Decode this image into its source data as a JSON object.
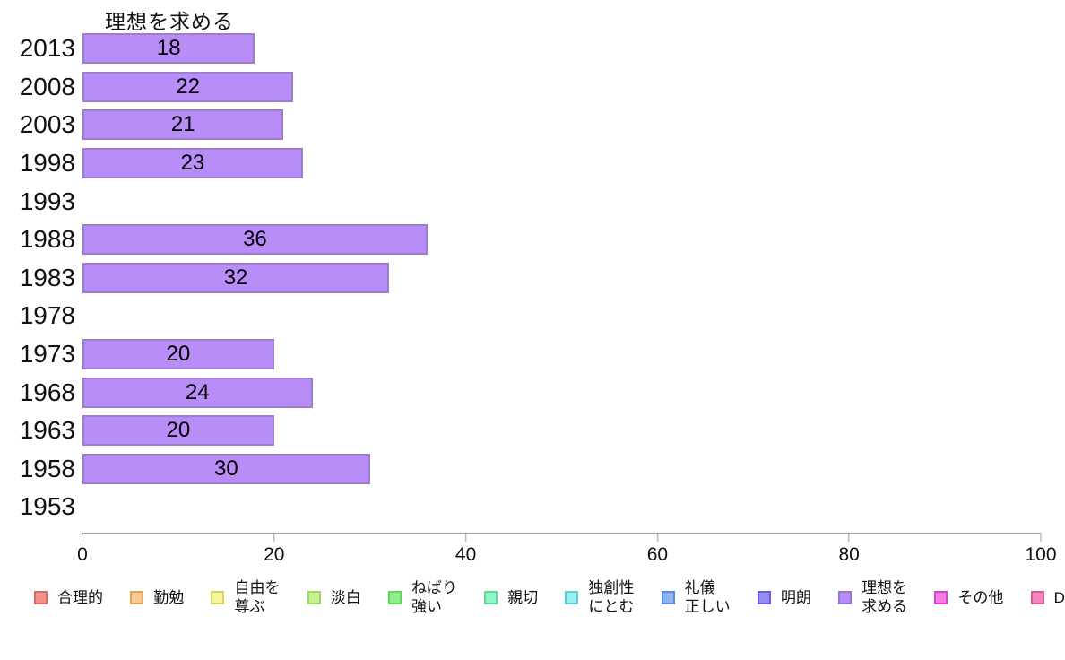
{
  "chart_data": {
    "type": "bar",
    "orientation": "horizontal",
    "title": "理想を求める",
    "categories": [
      "2013",
      "2008",
      "2003",
      "1998",
      "1993",
      "1988",
      "1983",
      "1978",
      "1973",
      "1968",
      "1963",
      "1958",
      "1953"
    ],
    "values": [
      18,
      22,
      21,
      23,
      null,
      36,
      32,
      null,
      20,
      24,
      20,
      30,
      null
    ],
    "xlim": [
      0,
      100
    ],
    "x_ticks": [
      0,
      20,
      40,
      60,
      80,
      100
    ],
    "grid": "off",
    "legend_position": "bottom",
    "bar_color": "#b88df7",
    "bar_border_color": "#9b7fc8",
    "legend_labels": [
      "合理的",
      "勤勉",
      "自由を尊ぶ",
      "淡白",
      "ねばり強い",
      "親切",
      "独創性にとむ",
      "礼儀正しい",
      "明朗",
      "理想を求める",
      "その他",
      "D"
    ]
  },
  "legend": {
    "items": [
      {
        "line1": "合理的",
        "line2": "",
        "color": "#f6908a",
        "border": "#db6a64"
      },
      {
        "line1": "勤勉",
        "line2": "",
        "color": "#f8ca90",
        "border": "#dba45e"
      },
      {
        "line1": "自由を",
        "line2": "尊ぶ",
        "color": "#f7f49b",
        "border": "#d9d25e"
      },
      {
        "line1": "淡白",
        "line2": "",
        "color": "#c5f48e",
        "border": "#9bd95e"
      },
      {
        "line1": "ねばり",
        "line2": "強い",
        "color": "#90ef8a",
        "border": "#5ed95e"
      },
      {
        "line1": "親切",
        "line2": "",
        "color": "#92f5c4",
        "border": "#5ed999"
      },
      {
        "line1": "独創性",
        "line2": "にとむ",
        "color": "#95f1f4",
        "border": "#5ecdd9"
      },
      {
        "line1": "礼儀",
        "line2": "正しい",
        "color": "#8db3f6",
        "border": "#5e8ed9"
      },
      {
        "line1": "明朗",
        "line2": "",
        "color": "#948df6",
        "border": "#675ed9"
      },
      {
        "line1": "理想を",
        "line2": "求める",
        "color": "#b88df7",
        "border": "#9b72d6"
      },
      {
        "line1": "その他",
        "line2": "",
        "color": "#f878ec",
        "border": "#d944c6"
      },
      {
        "line1": "D",
        "line2": "",
        "color": "#f884c1",
        "border": "#d95e94"
      }
    ]
  }
}
